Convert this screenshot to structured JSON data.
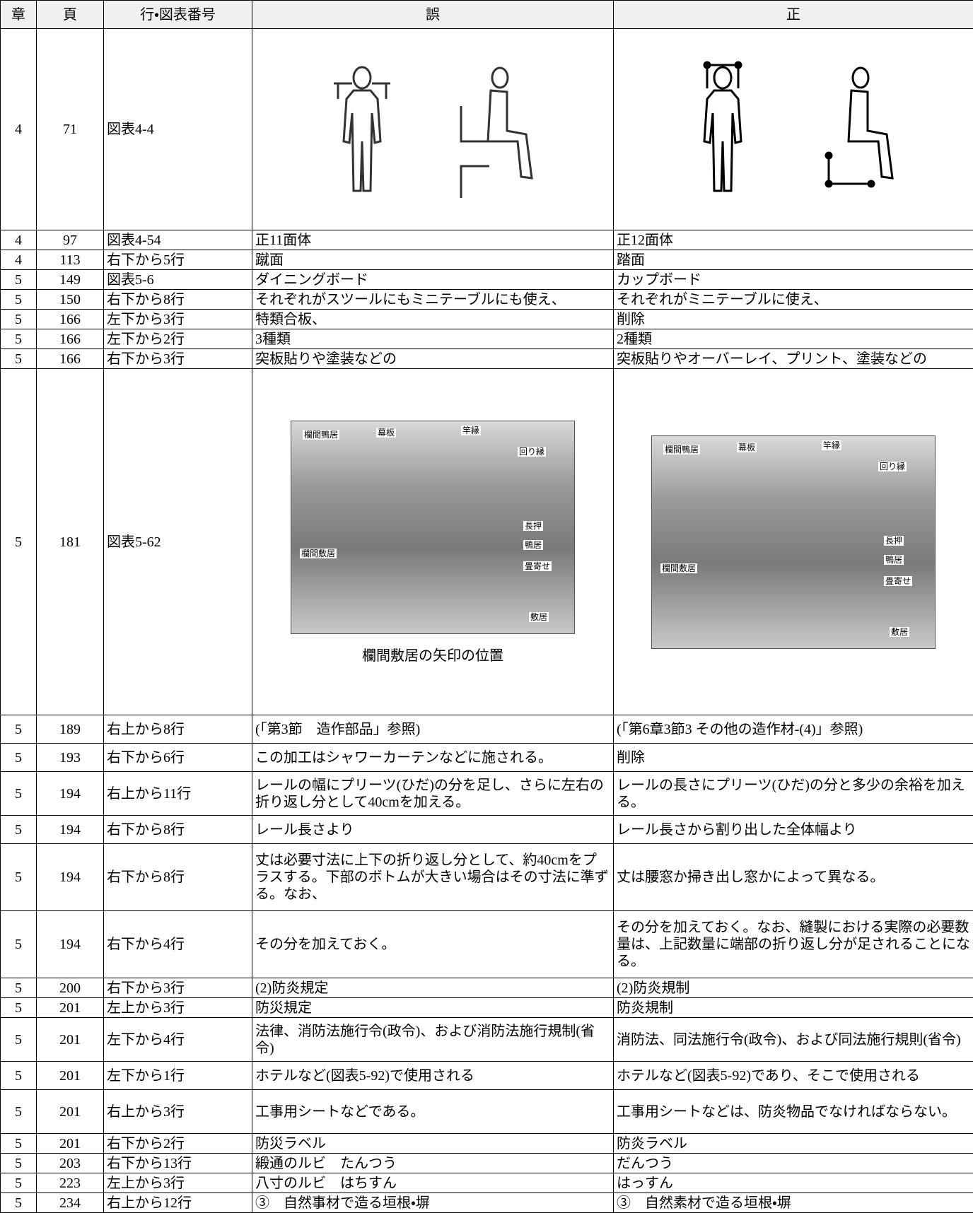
{
  "table": {
    "headers": [
      "章",
      "頁",
      "行・図表番号",
      "誤",
      "正"
    ],
    "rows": [
      {
        "chapter": "4",
        "page": "71",
        "line": "図表4-4"
      },
      {
        "chapter": "4",
        "page": "97",
        "line": "図表4-54",
        "wrong": "正11面体",
        "right": "正12面体"
      },
      {
        "chapter": "4",
        "page": "113",
        "line": "右下から5行",
        "wrong": "蹴面",
        "right": "踏面"
      },
      {
        "chapter": "5",
        "page": "149",
        "line": "図表5-6",
        "wrong": "ダイニングボード",
        "right": "カップボード"
      },
      {
        "chapter": "5",
        "page": "150",
        "line": "右下から8行",
        "wrong": "それぞれがスツールにもミニテーブルにも使え、",
        "right": "それぞれがミニテーブルに使え、"
      },
      {
        "chapter": "5",
        "page": "166",
        "line": "左下から3行",
        "wrong": "特類合板、",
        "right": "削除"
      },
      {
        "chapter": "5",
        "page": "166",
        "line": "左下から2行",
        "wrong": "3種類",
        "right": "2種類"
      },
      {
        "chapter": "5",
        "page": "166",
        "line": "右下から3行",
        "wrong": "突板貼りや塗装などの",
        "right": "突板貼りやオーバーレイ、プリント、塗装などの"
      },
      {
        "chapter": "5",
        "page": "181",
        "line": "図表5-62",
        "wrong_figure": {
          "labels": [
            "欄間鴨居",
            "幕板",
            "竿縁",
            "回り縁",
            "長押",
            "鴨居",
            "畳寄せ",
            "敷居",
            "欄間敷居"
          ],
          "caption": "欄間敷居の矢印の位置"
        },
        "right_figure": {
          "labels": [
            "欄間鴨居",
            "幕板",
            "竿縁",
            "回り縁",
            "長押",
            "鴨居",
            "畳寄せ",
            "敷居",
            "欄間敷居"
          ]
        }
      },
      {
        "chapter": "5",
        "page": "189",
        "line": "右上から8行",
        "wrong": "(「第3節　造作部品」参照)",
        "right": "(「第6章3節3 その他の造作材-(4)」参照)"
      },
      {
        "chapter": "5",
        "page": "193",
        "line": "右下から6行",
        "wrong": "この加工はシャワーカーテンなどに施される。",
        "right": "削除"
      },
      {
        "chapter": "5",
        "page": "194",
        "line": "右上から11行",
        "wrong": "レールの幅にプリーツ(ひだ)の分を足し、さらに左右の折り返し分として40cmを加える。",
        "right": "レールの長さにプリーツ(ひだ)の分と多少の余裕を加える。"
      },
      {
        "chapter": "5",
        "page": "194",
        "line": "右下から8行",
        "wrong": "レール長さより",
        "right": "レール長さから割り出した全体幅より"
      },
      {
        "chapter": "5",
        "page": "194",
        "line": "右下から8行",
        "wrong": "丈は必要寸法に上下の折り返し分として、約40cmをプラスする。下部のボトムが大きい場合はその寸法に準ずる。なお、",
        "right": "丈は腰窓か掃き出し窓かによって異なる。"
      },
      {
        "chapter": "5",
        "page": "194",
        "line": "右下から4行",
        "wrong": "その分を加えておく。",
        "right": "その分を加えておく。なお、縫製における実際の必要数量は、上記数量に端部の折り返し分が足されることになる。"
      },
      {
        "chapter": "5",
        "page": "200",
        "line": "右下から3行",
        "wrong": "(2)防炎規定",
        "right": "(2)防炎規制"
      },
      {
        "chapter": "5",
        "page": "201",
        "line": "左上から3行",
        "wrong": "防災規定",
        "right": "防炎規制"
      },
      {
        "chapter": "5",
        "page": "201",
        "line": "左下から4行",
        "wrong": "法律、消防法施行令(政令)、および消防法施行規制(省令)",
        "right": "消防法、同法施行令(政令)、および同法施行規則(省令)"
      },
      {
        "chapter": "5",
        "page": "201",
        "line": "左下から1行",
        "wrong": "ホテルなど(図表5-92)で使用される",
        "right": "ホテルなど(図表5-92)であり、そこで使用される"
      },
      {
        "chapter": "5",
        "page": "201",
        "line": "右上から3行",
        "wrong": "工事用シートなどである。",
        "right": "工事用シートなどは、防炎物品でなければならない。"
      },
      {
        "chapter": "5",
        "page": "201",
        "line": "右下から2行",
        "wrong": "防災ラベル",
        "right": "防炎ラベル"
      },
      {
        "chapter": "5",
        "page": "203",
        "line": "右下から13行",
        "wrong": "緞通のルビ　たんつう",
        "right": "だんつう"
      },
      {
        "chapter": "5",
        "page": "223",
        "line": "左上から3行",
        "wrong": "八寸のルビ　はちすん",
        "right": "はっすん"
      },
      {
        "chapter": "5",
        "page": "234",
        "line": "右上から12行",
        "wrong": "③　自然事材で造る垣根・塀",
        "right": "③　自然素材で造る垣根・塀"
      }
    ]
  }
}
